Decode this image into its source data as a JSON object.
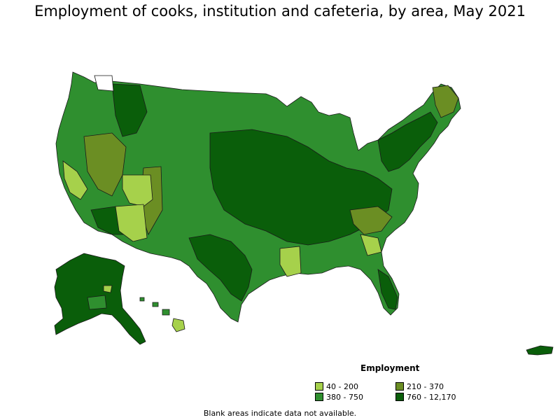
{
  "title": "Employment of cooks, institution and cafeteria, by area, May 2021",
  "legend": {
    "title": "Employment",
    "items": [
      {
        "label": "40 - 200",
        "color": "#a6d14b"
      },
      {
        "label": "210 - 370",
        "color": "#6b8e23"
      },
      {
        "label": "380 - 750",
        "color": "#2f8f2f"
      },
      {
        "label": "760 - 12,170",
        "color": "#0a5e0a"
      }
    ]
  },
  "note": "Blank areas indicate data not available.",
  "colors": {
    "border": "#000000",
    "background": "#ffffff"
  }
}
